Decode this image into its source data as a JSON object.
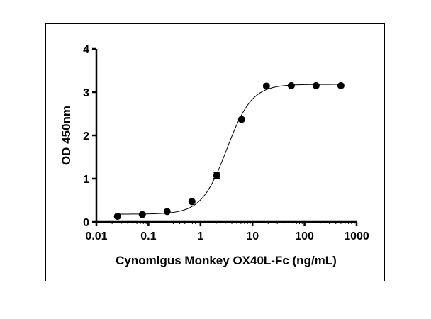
{
  "chart_data": {
    "type": "scatter",
    "title": "",
    "xlabel": "Cynomlgus Monkey OX40L-Fc (ng/mL)",
    "ylabel": "OD 450nm",
    "xscale": "log",
    "xlim": [
      0.01,
      1000
    ],
    "ylim": [
      0,
      4
    ],
    "xticks": [
      "0.01",
      "0.1",
      "1",
      "10",
      "100",
      "1000"
    ],
    "yticks": [
      "0",
      "1",
      "2",
      "3",
      "4"
    ],
    "grid": false,
    "series": [
      {
        "name": "OD 450nm",
        "x": [
          0.0254,
          0.0762,
          0.229,
          0.686,
          2.06,
          6.17,
          18.5,
          55.6,
          166.7,
          500
        ],
        "y": [
          0.13,
          0.17,
          0.24,
          0.47,
          1.08,
          2.37,
          3.14,
          3.15,
          3.15,
          3.15
        ],
        "error": [
          0,
          0,
          0,
          0,
          0.07,
          0,
          0,
          0,
          0,
          0
        ]
      }
    ],
    "fit": {
      "model": "4PL",
      "bottom": 0.18,
      "top": 3.18,
      "ec50": 3.2,
      "hill": 1.8
    }
  }
}
